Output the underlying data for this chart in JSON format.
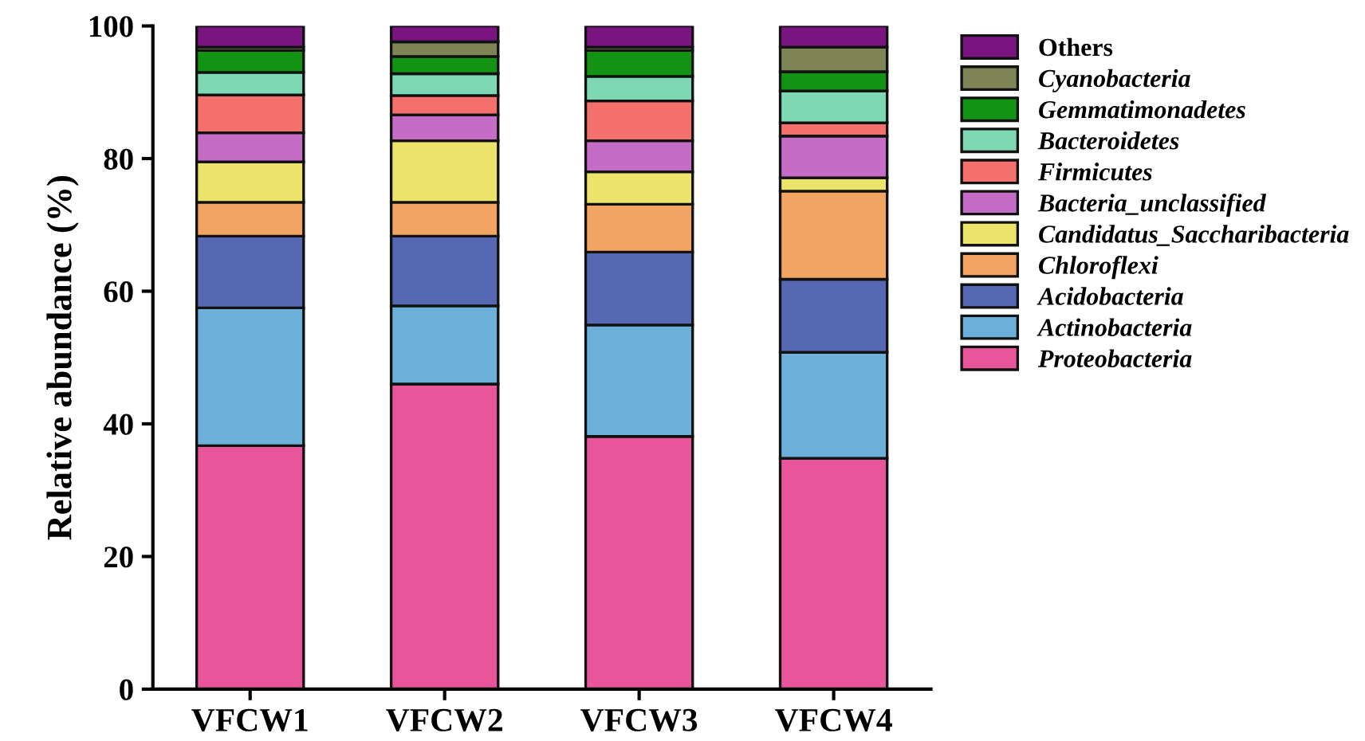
{
  "chart_data": {
    "type": "bar",
    "stacked": true,
    "ylabel": "Relative abundance (%)",
    "categories": [
      "VFCW1",
      "VFCW2",
      "VFCW3",
      "VFCW4"
    ],
    "series": [
      {
        "name": "Proteobacteria",
        "color": "#e8559a",
        "values": [
          36.7,
          46.0,
          38.1,
          34.8
        ]
      },
      {
        "name": "Actinobacteria",
        "color": "#6cafd8",
        "values": [
          20.8,
          11.8,
          16.8,
          16.0
        ]
      },
      {
        "name": "Acidobacteria",
        "color": "#5667b3",
        "values": [
          10.8,
          10.5,
          11.0,
          11.0
        ]
      },
      {
        "name": "Chloroflexi",
        "color": "#f2a462",
        "values": [
          5.1,
          5.1,
          7.2,
          13.3
        ]
      },
      {
        "name": "Candidatus_Saccharibacteria",
        "color": "#ece36a",
        "values": [
          6.1,
          9.3,
          4.9,
          2.0
        ]
      },
      {
        "name": "Bacteria_unclassified",
        "color": "#c56cc6",
        "values": [
          4.4,
          3.9,
          4.7,
          6.3
        ]
      },
      {
        "name": "Firmicutes",
        "color": "#f4706c",
        "values": [
          5.7,
          2.9,
          6.0,
          2.0
        ]
      },
      {
        "name": "Bacteroidetes",
        "color": "#7fd8b4",
        "values": [
          3.4,
          3.3,
          3.7,
          4.8
        ]
      },
      {
        "name": "Gemmatimonadetes",
        "color": "#139313",
        "values": [
          3.3,
          2.6,
          3.9,
          2.9
        ]
      },
      {
        "name": "Cyanobacteria",
        "color": "#7f8457",
        "values": [
          0.5,
          2.2,
          0.5,
          3.7
        ]
      },
      {
        "name": "Others",
        "color": "#7a1480",
        "values": [
          3.2,
          2.4,
          3.2,
          3.2
        ]
      }
    ],
    "ylim": [
      0,
      100
    ],
    "yticks": [
      0,
      20,
      40,
      60,
      80,
      100
    ],
    "grid": false,
    "legend": "top right"
  }
}
